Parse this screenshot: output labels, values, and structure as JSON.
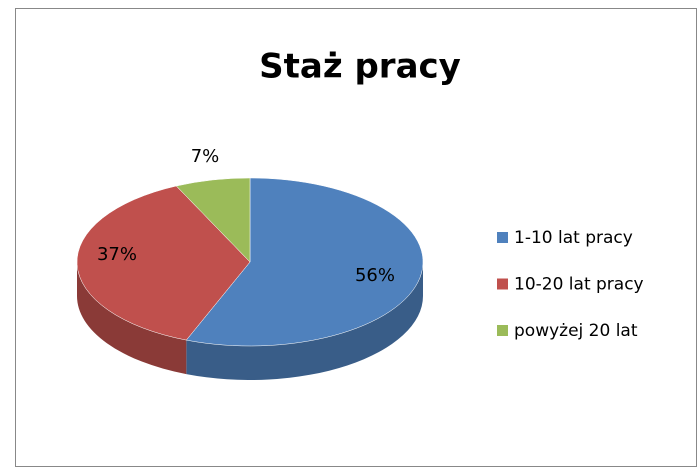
{
  "chart_data": {
    "type": "pie",
    "title": "Staż pracy",
    "categories": [
      "1-10 lat pracy",
      "10-20 lat pracy",
      "powyżej 20 lat"
    ],
    "values": [
      56,
      37,
      7
    ],
    "value_labels": [
      "56%",
      "37%",
      "7%"
    ],
    "colors": [
      "#4f81bd",
      "#c0504d",
      "#9bbb59"
    ],
    "legend": "right"
  }
}
